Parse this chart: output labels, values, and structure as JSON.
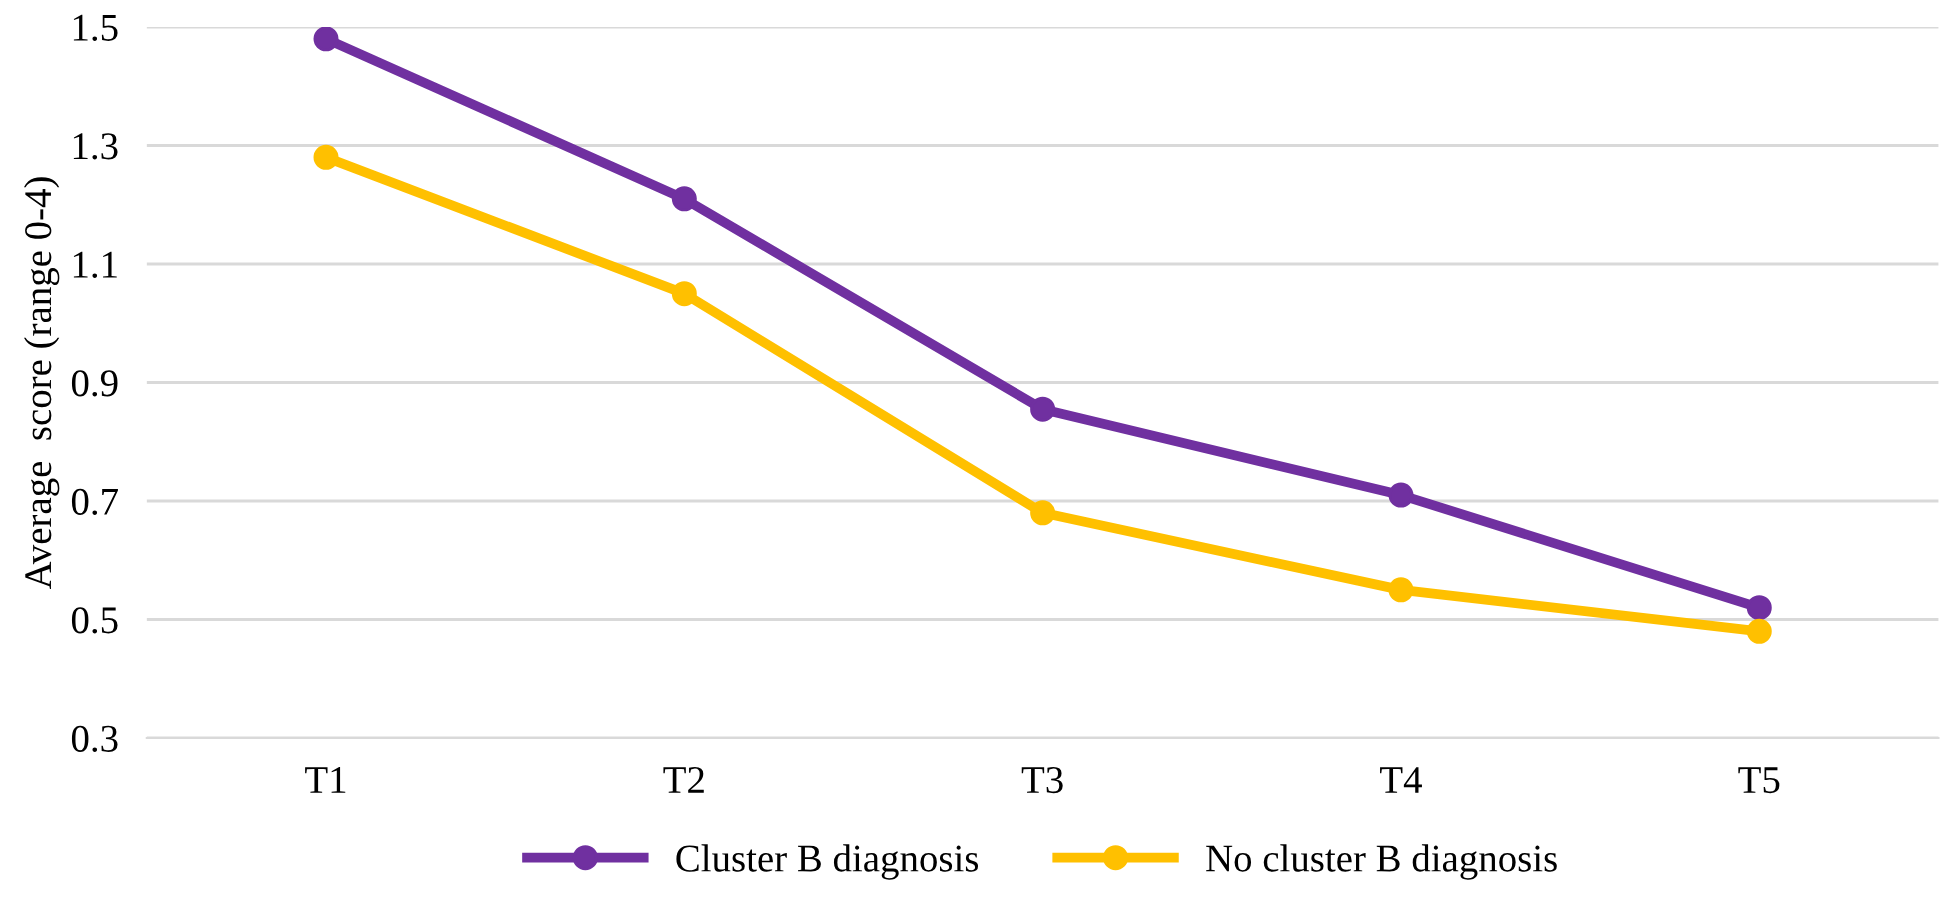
{
  "chart_data": {
    "type": "line",
    "ylabel": "Average  score (range 0-4)",
    "categories": [
      "T1",
      "T2",
      "T3",
      "T4",
      "T5"
    ],
    "series": [
      {
        "name": "Cluster B diagnosis",
        "color": "#7030a0",
        "values": [
          1.48,
          1.21,
          0.855,
          0.71,
          0.52
        ]
      },
      {
        "name": "No cluster B diagnosis",
        "color": "#ffc000",
        "values": [
          1.28,
          1.05,
          0.68,
          0.55,
          0.48
        ]
      }
    ],
    "ylim": [
      0.3,
      1.5
    ],
    "yticks": [
      {
        "value": 0.3,
        "label": "0.3"
      },
      {
        "value": 0.5,
        "label": "0.5"
      },
      {
        "value": 0.7,
        "label": "0.7"
      },
      {
        "value": 0.9,
        "label": "0.9"
      },
      {
        "value": 1.1,
        "label": "1.1"
      },
      {
        "value": 1.3,
        "label": "1.3"
      },
      {
        "value": 1.5,
        "label": "1.5"
      }
    ],
    "grid": "y",
    "legend": "bottom",
    "marker": "circle",
    "line_style": "solid"
  }
}
